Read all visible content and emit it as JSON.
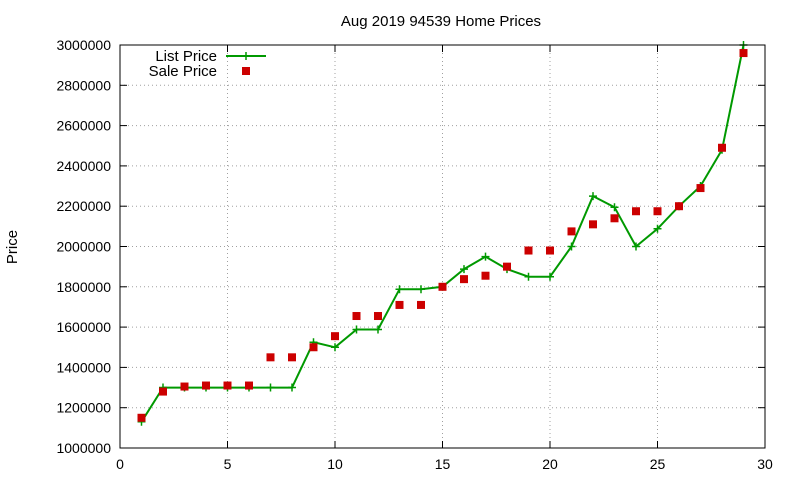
{
  "chart_data": {
    "type": "line",
    "title": "Aug 2019 94539 Home Prices",
    "xlabel": "",
    "ylabel": "Price",
    "xlim": [
      0,
      30
    ],
    "ylim": [
      1000000,
      3000000
    ],
    "xticks": [
      0,
      5,
      10,
      15,
      20,
      25,
      30
    ],
    "yticks": [
      1000000,
      1200000,
      1400000,
      1600000,
      1800000,
      2000000,
      2200000,
      2400000,
      2600000,
      2800000,
      3000000
    ],
    "grid": true,
    "legend": "top-left",
    "series": [
      {
        "name": "List Price",
        "style": "line+cross",
        "color": "#009900",
        "x": [
          1,
          2,
          3,
          4,
          5,
          6,
          7,
          8,
          9,
          10,
          11,
          12,
          13,
          14,
          15,
          16,
          17,
          18,
          19,
          20,
          21,
          22,
          23,
          24,
          25,
          26,
          27,
          28,
          29
        ],
        "y": [
          1130000,
          1300000,
          1300000,
          1300000,
          1300000,
          1300000,
          1300000,
          1300000,
          1525000,
          1500000,
          1588000,
          1588000,
          1788000,
          1788000,
          1800000,
          1888000,
          1950000,
          1888000,
          1850000,
          1850000,
          2000000,
          2250000,
          2195000,
          2000000,
          2088000,
          2200000,
          2300000,
          2480000,
          3000000
        ]
      },
      {
        "name": "Sale Price",
        "style": "square",
        "color": "#cc0000",
        "x": [
          1,
          2,
          3,
          4,
          5,
          6,
          7,
          8,
          9,
          10,
          11,
          12,
          13,
          14,
          15,
          16,
          17,
          18,
          19,
          20,
          21,
          22,
          23,
          24,
          25,
          26,
          27,
          28,
          29
        ],
        "y": [
          1150000,
          1280000,
          1305000,
          1310000,
          1310000,
          1310000,
          1450000,
          1450000,
          1500000,
          1555000,
          1655000,
          1655000,
          1710000,
          1710000,
          1800000,
          1838000,
          1855000,
          1900000,
          1980000,
          1980000,
          2075000,
          2110000,
          2140000,
          2175000,
          2175000,
          2200000,
          2290000,
          2490000,
          2960000
        ]
      }
    ]
  }
}
